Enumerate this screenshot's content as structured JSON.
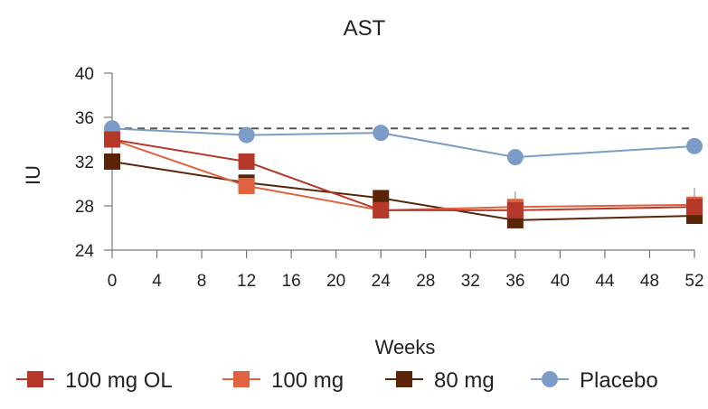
{
  "chart_data": {
    "type": "line",
    "title": "AST",
    "xlabel": "Weeks",
    "ylabel": "IU",
    "xlim": [
      0,
      52
    ],
    "ylim": [
      24,
      40
    ],
    "x_ticks": [
      0,
      4,
      8,
      12,
      16,
      20,
      24,
      28,
      32,
      36,
      40,
      44,
      48,
      52
    ],
    "y_ticks": [
      24,
      28,
      32,
      36,
      40
    ],
    "reference_line": {
      "y": 35,
      "style": "dashed"
    },
    "series": [
      {
        "name": "100 mg OL",
        "color": "#B5382A",
        "marker": "square",
        "x": [
          0,
          12,
          24,
          36,
          52
        ],
        "y": [
          34,
          32,
          27.6,
          27.6,
          27.9
        ],
        "error_upper": [
          null,
          null,
          null,
          29.3,
          null
        ]
      },
      {
        "name": "100 mg",
        "color": "#E0633F",
        "marker": "square",
        "x": [
          0,
          12,
          24,
          36,
          52
        ],
        "y": [
          34,
          29.8,
          27.6,
          27.9,
          28.1
        ],
        "error_upper": [
          null,
          null,
          null,
          null,
          29.6
        ]
      },
      {
        "name": "80 mg",
        "color": "#5A2507",
        "marker": "square",
        "x": [
          0,
          12,
          24,
          36,
          52
        ],
        "y": [
          32,
          30.1,
          28.7,
          26.7,
          27.1
        ],
        "error_upper": [
          null,
          null,
          null,
          null,
          null
        ]
      },
      {
        "name": "Placebo",
        "color": "#7A9CC6",
        "marker": "circle",
        "x": [
          0,
          12,
          24,
          36,
          52
        ],
        "y": [
          35,
          34.4,
          34.6,
          32.4,
          33.4
        ],
        "error_upper": [
          null,
          null,
          null,
          null,
          null
        ]
      }
    ],
    "legend_position": "bottom"
  }
}
